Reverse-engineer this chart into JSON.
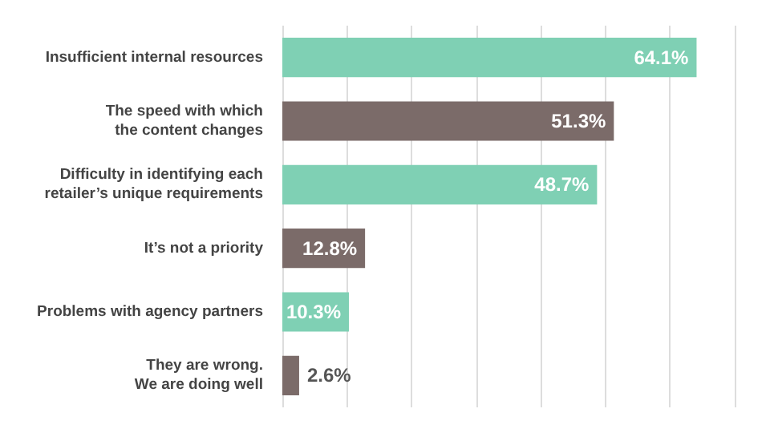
{
  "chart_data": {
    "type": "bar",
    "orientation": "horizontal",
    "categories": [
      "Insufficient internal resources",
      "The speed with which\nthe content changes",
      "Difficulty in identifying each\nretailer’s unique requirements",
      "It’s not a priority",
      "Problems with agency partners",
      "They are wrong.\nWe are doing well"
    ],
    "values": [
      64.1,
      51.3,
      48.7,
      12.8,
      10.3,
      2.6
    ],
    "colors": [
      "#7fd0b4",
      "#7b6b69",
      "#7fd0b4",
      "#7b6b69",
      "#7fd0b4",
      "#7b6b69"
    ],
    "value_labels": [
      "64.1%",
      "51.3%",
      "48.7%",
      "12.8%",
      "10.3%",
      "2.6%"
    ],
    "grid": "x"
  }
}
